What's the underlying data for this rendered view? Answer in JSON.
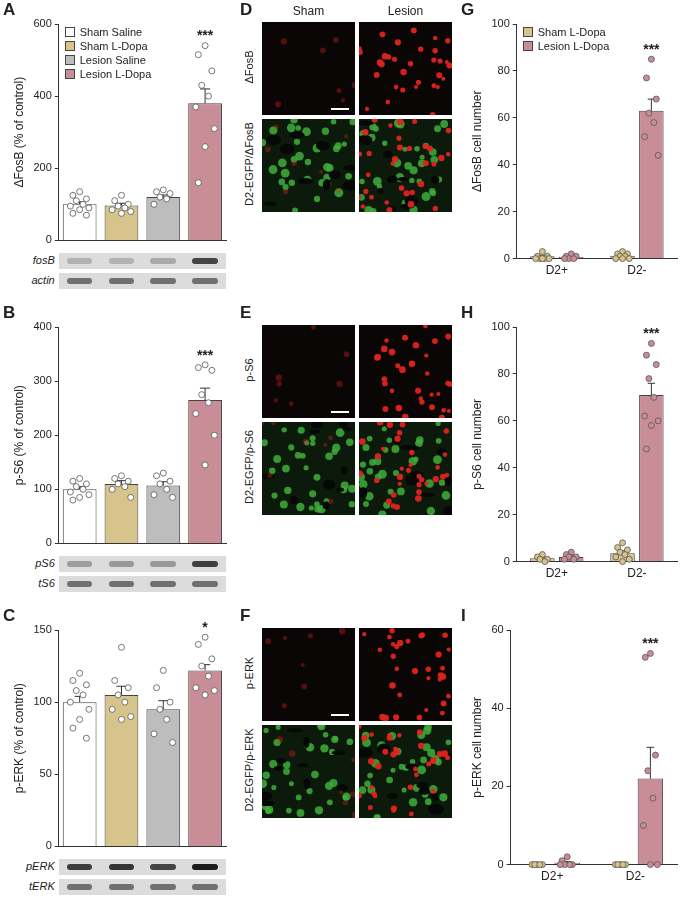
{
  "chart_data": [
    {
      "panel_label": "A",
      "type": "bar",
      "ylabel": "ΔFosB (% of control)",
      "categories": [
        "Sham Saline",
        "Sham L-Dopa",
        "Lesion Saline",
        "Lesion L-Dopa"
      ],
      "colors": [
        "#ffffff",
        "#d6c48c",
        "#bdbdbd",
        "#c98d98"
      ],
      "values": [
        100,
        97,
        120,
        380
      ],
      "errors": [
        7,
        6,
        6,
        40
      ],
      "points": [
        [
          135,
          125,
          115,
          110,
          100,
          95,
          90,
          85,
          75,
          70
        ],
        [
          125,
          110,
          100,
          95,
          90,
          85,
          80,
          75
        ],
        [
          140,
          135,
          130,
          120,
          115,
          100
        ],
        [
          540,
          515,
          470,
          430,
          400,
          370,
          310,
          260,
          160
        ]
      ],
      "ylim": [
        0,
        600
      ],
      "yticks": [
        0,
        200,
        400,
        600
      ],
      "grid": false,
      "tick_labels": "y",
      "legend": "top-left",
      "annotations": [
        {
          "category": "Lesion L-Dopa",
          "text": "***"
        }
      ],
      "blot_labels": [
        "fosB",
        "actin"
      ]
    },
    {
      "panel_label": "B",
      "type": "bar",
      "ylabel": "p-S6 (% of control)",
      "categories": [
        "Sham Saline",
        "Sham L-Dopa",
        "Lesion Saline",
        "Lesion L-Dopa"
      ],
      "colors": [
        "#ffffff",
        "#d6c48c",
        "#bdbdbd",
        "#c98d98"
      ],
      "values": [
        100,
        110,
        107,
        265
      ],
      "errors": [
        5,
        6,
        7,
        22
      ],
      "points": [
        [
          120,
          115,
          110,
          105,
          100,
          95,
          90,
          85,
          80
        ],
        [
          125,
          120,
          115,
          110,
          105,
          100,
          85
        ],
        [
          130,
          125,
          115,
          110,
          100,
          90,
          85
        ],
        [
          330,
          325,
          320,
          275,
          260,
          240,
          200,
          145
        ]
      ],
      "ylim": [
        0,
        400
      ],
      "yticks": [
        0,
        100,
        200,
        300,
        400
      ],
      "grid": false,
      "tick_labels": "y",
      "annotations": [
        {
          "category": "Lesion L-Dopa",
          "text": "***"
        }
      ],
      "blot_labels": [
        "pS6",
        "tS6"
      ]
    },
    {
      "panel_label": "C",
      "type": "bar",
      "ylabel": "p-ERK (% of control)",
      "categories": [
        "Sham Saline",
        "Sham L-Dopa",
        "Lesion Saline",
        "Lesion L-Dopa"
      ],
      "colors": [
        "#ffffff",
        "#d6c48c",
        "#bdbdbd",
        "#c98d98"
      ],
      "values": [
        100,
        105,
        95,
        122
      ],
      "errors": [
        4,
        6,
        6,
        4
      ],
      "points": [
        [
          120,
          115,
          112,
          108,
          105,
          100,
          95,
          88,
          82,
          75
        ],
        [
          138,
          115,
          110,
          105,
          100,
          95,
          90,
          88
        ],
        [
          122,
          110,
          100,
          95,
          88,
          78,
          72
        ],
        [
          145,
          140,
          130,
          125,
          118,
          110,
          108,
          105
        ]
      ],
      "ylim": [
        0,
        150
      ],
      "yticks": [
        0,
        50,
        100,
        150
      ],
      "grid": false,
      "tick_labels": "y",
      "annotations": [
        {
          "category": "Lesion L-Dopa",
          "text": "*"
        }
      ],
      "blot_labels": [
        "pERK",
        "tERK"
      ]
    },
    {
      "panel_label": "G",
      "type": "bar",
      "ylabel": "ΔFosB cell number",
      "categories": [
        "D2+",
        "D2-"
      ],
      "series": [
        {
          "name": "Sham L-Dopa",
          "color": "#d6c48c",
          "values": [
            1,
            1.2
          ],
          "errors": [
            0.4,
            0.4
          ],
          "points": [
            [
              3,
              1,
              1,
              0,
              0,
              0,
              0,
              0
            ],
            [
              3,
              2,
              2,
              1,
              1,
              0,
              0,
              0
            ]
          ]
        },
        {
          "name": "Lesion L-Dopa",
          "color": "#c98d98",
          "values": [
            0.7,
            63
          ],
          "errors": [
            0.3,
            5
          ],
          "points": [
            [
              2,
              1,
              1,
              0,
              0,
              0
            ],
            [
              85,
              77,
              68,
              62,
              58,
              52,
              44
            ]
          ]
        }
      ],
      "ylim": [
        0,
        100
      ],
      "yticks": [
        0,
        20,
        40,
        60,
        80,
        100
      ],
      "grid": false,
      "legend": "top-left",
      "annotations": [
        {
          "category": "D2-",
          "series": "Lesion L-Dopa",
          "text": "***"
        }
      ]
    },
    {
      "panel_label": "H",
      "type": "bar",
      "ylabel": "p-S6 cell number",
      "categories": [
        "D2+",
        "D2-"
      ],
      "series": [
        {
          "name": "Sham L-Dopa",
          "color": "#d6c48c",
          "values": [
            1.4,
            3.6
          ],
          "errors": [
            0.5,
            1
          ]
        },
        {
          "name": "Lesion L-Dopa",
          "color": "#c98d98",
          "values": [
            2,
            71
          ],
          "errors": [
            0.5,
            5
          ]
        }
      ],
      "ylim": [
        0,
        100
      ],
      "yticks": [
        0,
        20,
        40,
        60,
        80,
        100
      ],
      "grid": false,
      "annotations": [
        {
          "category": "D2-",
          "series": "Lesion L-Dopa",
          "text": "***"
        }
      ]
    },
    {
      "panel_label": "I",
      "type": "bar",
      "ylabel": "p-ERK cell number",
      "categories": [
        "D2+",
        "D2-"
      ],
      "series": [
        {
          "name": "Sham L-Dopa",
          "color": "#d6c48c",
          "values": [
            0,
            0
          ],
          "errors": [
            0,
            0
          ]
        },
        {
          "name": "Lesion L-Dopa",
          "color": "#c98d98",
          "values": [
            0.5,
            22
          ],
          "errors": [
            0.3,
            8
          ]
        }
      ],
      "ylim": [
        0,
        60
      ],
      "yticks": [
        0,
        20,
        40,
        60
      ],
      "grid": false,
      "annotations": [
        {
          "category": "D2-",
          "series": "Lesion L-Dopa",
          "text": "***"
        }
      ]
    }
  ],
  "point_sets": {
    "H": [
      [
        [
          3,
          2,
          1,
          1,
          0
        ],
        [
          8,
          6,
          5,
          4,
          3,
          2,
          1,
          0
        ]
      ],
      [
        [
          4,
          3,
          2,
          2,
          1,
          1
        ],
        [
          93,
          88,
          84,
          78,
          70,
          62,
          60,
          58,
          48
        ]
      ]
    ],
    "I": [
      [
        [
          0,
          0,
          0,
          0,
          0
        ],
        [
          0,
          0,
          0,
          0,
          0
        ]
      ],
      [
        [
          2,
          1,
          0,
          0,
          0,
          0
        ],
        [
          54,
          53,
          28,
          24,
          17,
          10,
          0,
          0
        ]
      ]
    ]
  },
  "images": [
    {
      "panel_label": "D",
      "columns": [
        "Sham",
        "Lesion"
      ],
      "rows": [
        "ΔFosB",
        "D2-EGFP/ΔFosB"
      ]
    },
    {
      "panel_label": "E",
      "rows": [
        "p-S6",
        "D2-EGFP/p-S6"
      ]
    },
    {
      "panel_label": "F",
      "rows": [
        "p-ERK",
        "D2-EGFP/p-ERK"
      ]
    }
  ]
}
